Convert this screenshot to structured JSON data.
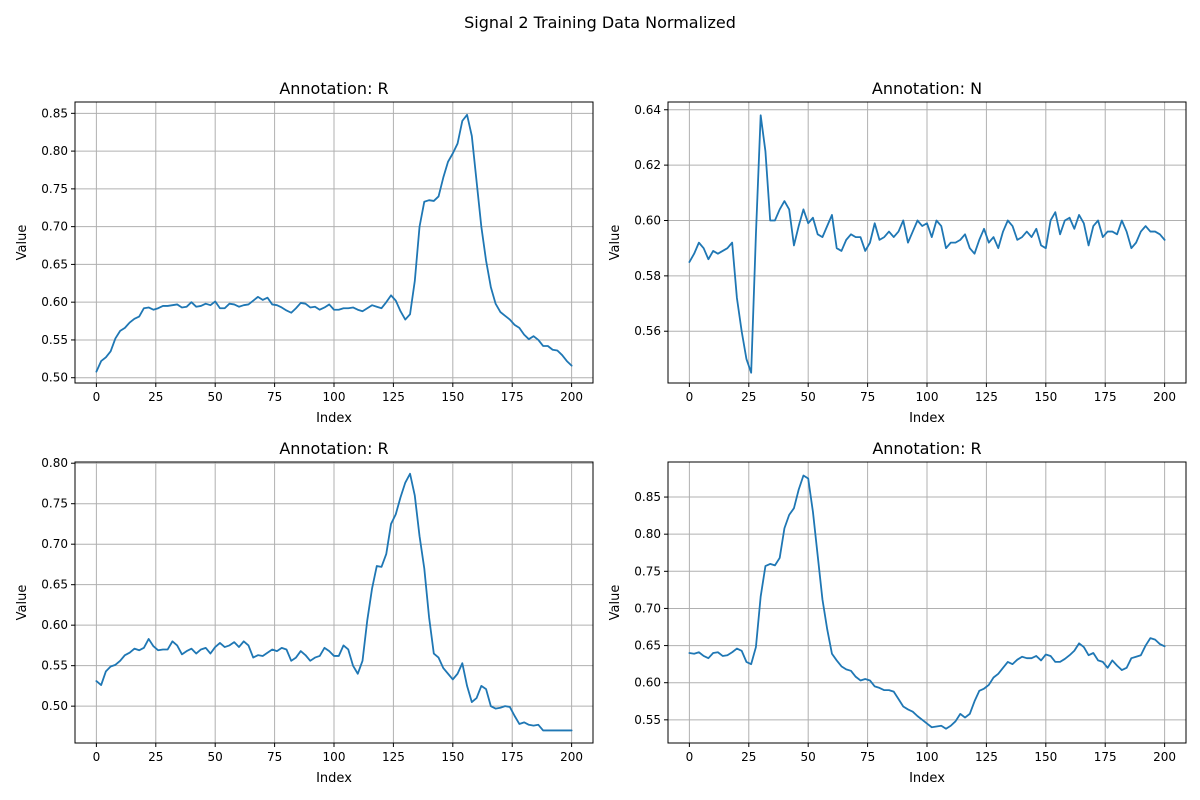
{
  "title": "Signal 2 Training Data Normalized",
  "style": {
    "line_color": "#1f77b4",
    "grid_color": "#b0b0b0"
  },
  "chart_data": [
    {
      "type": "line",
      "title": "Annotation: R",
      "xlabel": "Index",
      "ylabel": "Value",
      "xlim": [
        -9,
        209
      ],
      "ylim": [
        0.493,
        0.865
      ],
      "xticks": [
        0,
        25,
        50,
        75,
        100,
        125,
        150,
        175,
        200
      ],
      "yticks": [
        0.5,
        0.55,
        0.6,
        0.65,
        0.7,
        0.75,
        0.8,
        0.85
      ],
      "grid": true,
      "x": [
        0,
        2,
        4,
        6,
        8,
        10,
        12,
        14,
        16,
        18,
        20,
        22,
        24,
        26,
        28,
        30,
        32,
        34,
        36,
        38,
        40,
        42,
        44,
        46,
        48,
        50,
        52,
        54,
        56,
        58,
        60,
        62,
        64,
        66,
        68,
        70,
        72,
        74,
        76,
        78,
        80,
        82,
        84,
        86,
        88,
        90,
        92,
        94,
        96,
        98,
        100,
        102,
        104,
        106,
        108,
        110,
        112,
        114,
        116,
        118,
        120,
        122,
        124,
        126,
        128,
        130,
        132,
        134,
        136,
        138,
        140,
        142,
        144,
        146,
        148,
        150,
        152,
        154,
        156,
        158,
        160,
        162,
        164,
        166,
        168,
        170,
        172,
        174,
        176,
        178,
        180,
        182,
        184,
        186,
        188,
        190,
        192,
        194,
        196,
        198,
        200
      ],
      "y": [
        0.508,
        0.522,
        0.527,
        0.535,
        0.552,
        0.562,
        0.566,
        0.573,
        0.578,
        0.581,
        0.592,
        0.593,
        0.59,
        0.592,
        0.595,
        0.595,
        0.596,
        0.597,
        0.593,
        0.594,
        0.6,
        0.594,
        0.595,
        0.598,
        0.596,
        0.601,
        0.592,
        0.592,
        0.598,
        0.597,
        0.594,
        0.596,
        0.597,
        0.602,
        0.607,
        0.603,
        0.606,
        0.597,
        0.596,
        0.593,
        0.589,
        0.586,
        0.592,
        0.599,
        0.598,
        0.593,
        0.594,
        0.59,
        0.593,
        0.597,
        0.59,
        0.59,
        0.592,
        0.592,
        0.593,
        0.59,
        0.588,
        0.592,
        0.596,
        0.594,
        0.592,
        0.6,
        0.609,
        0.602,
        0.588,
        0.577,
        0.584,
        0.628,
        0.7,
        0.733,
        0.735,
        0.734,
        0.74,
        0.765,
        0.786,
        0.797,
        0.81,
        0.84,
        0.848,
        0.82,
        0.76,
        0.7,
        0.655,
        0.62,
        0.598,
        0.587,
        0.582,
        0.577,
        0.57,
        0.566,
        0.557,
        0.551,
        0.555,
        0.55,
        0.542,
        0.542,
        0.537,
        0.536,
        0.53,
        0.522,
        0.516
      ]
    },
    {
      "type": "line",
      "title": "Annotation: N",
      "xlabel": "Index",
      "ylabel": "Value",
      "xlim": [
        -9,
        209
      ],
      "ylim": [
        0.5413,
        0.6428
      ],
      "xticks": [
        0,
        25,
        50,
        75,
        100,
        125,
        150,
        175,
        200
      ],
      "yticks": [
        0.56,
        0.58,
        0.6,
        0.62,
        0.64
      ],
      "grid": true,
      "x": [
        0,
        2,
        4,
        6,
        8,
        10,
        12,
        14,
        16,
        18,
        20,
        22,
        24,
        26,
        28,
        30,
        32,
        34,
        36,
        38,
        40,
        42,
        44,
        46,
        48,
        50,
        52,
        54,
        56,
        58,
        60,
        62,
        64,
        66,
        68,
        70,
        72,
        74,
        76,
        78,
        80,
        82,
        84,
        86,
        88,
        90,
        92,
        94,
        96,
        98,
        100,
        102,
        104,
        106,
        108,
        110,
        112,
        114,
        116,
        118,
        120,
        122,
        124,
        126,
        128,
        130,
        132,
        134,
        136,
        138,
        140,
        142,
        144,
        146,
        148,
        150,
        152,
        154,
        156,
        158,
        160,
        162,
        164,
        166,
        168,
        170,
        172,
        174,
        176,
        178,
        180,
        182,
        184,
        186,
        188,
        190,
        192,
        194,
        196,
        198,
        200
      ],
      "y": [
        0.585,
        0.588,
        0.592,
        0.59,
        0.586,
        0.589,
        0.588,
        0.589,
        0.59,
        0.592,
        0.572,
        0.56,
        0.55,
        0.545,
        0.595,
        0.638,
        0.625,
        0.6,
        0.6,
        0.604,
        0.607,
        0.604,
        0.591,
        0.598,
        0.604,
        0.599,
        0.601,
        0.595,
        0.594,
        0.598,
        0.602,
        0.59,
        0.589,
        0.593,
        0.595,
        0.594,
        0.594,
        0.589,
        0.592,
        0.599,
        0.593,
        0.594,
        0.596,
        0.594,
        0.596,
        0.6,
        0.592,
        0.596,
        0.6,
        0.598,
        0.599,
        0.594,
        0.6,
        0.598,
        0.59,
        0.592,
        0.592,
        0.593,
        0.595,
        0.59,
        0.588,
        0.593,
        0.597,
        0.592,
        0.594,
        0.59,
        0.596,
        0.6,
        0.598,
        0.593,
        0.594,
        0.596,
        0.594,
        0.597,
        0.591,
        0.59,
        0.6,
        0.603,
        0.595,
        0.6,
        0.601,
        0.597,
        0.602,
        0.599,
        0.591,
        0.598,
        0.6,
        0.594,
        0.596,
        0.596,
        0.595,
        0.6,
        0.596,
        0.59,
        0.592,
        0.596,
        0.598,
        0.596,
        0.596,
        0.595,
        0.593
      ]
    },
    {
      "type": "line",
      "title": "Annotation: R",
      "xlabel": "Index",
      "ylabel": "Value",
      "xlim": [
        -9,
        209
      ],
      "ylim": [
        0.4545,
        0.8015
      ],
      "xticks": [
        0,
        25,
        50,
        75,
        100,
        125,
        150,
        175,
        200
      ],
      "yticks": [
        0.5,
        0.55,
        0.6,
        0.65,
        0.7,
        0.75,
        0.8
      ],
      "grid": true,
      "x": [
        0,
        2,
        4,
        6,
        8,
        10,
        12,
        14,
        16,
        18,
        20,
        22,
        24,
        26,
        28,
        30,
        32,
        34,
        36,
        38,
        40,
        42,
        44,
        46,
        48,
        50,
        52,
        54,
        56,
        58,
        60,
        62,
        64,
        66,
        68,
        70,
        72,
        74,
        76,
        78,
        80,
        82,
        84,
        86,
        88,
        90,
        92,
        94,
        96,
        98,
        100,
        102,
        104,
        106,
        108,
        110,
        112,
        114,
        116,
        118,
        120,
        122,
        124,
        126,
        128,
        130,
        132,
        134,
        136,
        138,
        140,
        142,
        144,
        146,
        148,
        150,
        152,
        154,
        156,
        158,
        160,
        162,
        164,
        166,
        168,
        170,
        172,
        174,
        176,
        178,
        180,
        182,
        184,
        186,
        188,
        190,
        192,
        194,
        196,
        198,
        200
      ],
      "y": [
        0.531,
        0.526,
        0.543,
        0.549,
        0.551,
        0.556,
        0.563,
        0.566,
        0.571,
        0.569,
        0.572,
        0.583,
        0.574,
        0.569,
        0.57,
        0.57,
        0.58,
        0.575,
        0.564,
        0.568,
        0.571,
        0.565,
        0.57,
        0.572,
        0.565,
        0.573,
        0.578,
        0.573,
        0.575,
        0.579,
        0.573,
        0.58,
        0.575,
        0.56,
        0.563,
        0.562,
        0.566,
        0.57,
        0.568,
        0.572,
        0.57,
        0.556,
        0.56,
        0.568,
        0.563,
        0.556,
        0.56,
        0.562,
        0.572,
        0.568,
        0.562,
        0.562,
        0.575,
        0.57,
        0.55,
        0.54,
        0.556,
        0.606,
        0.645,
        0.673,
        0.672,
        0.688,
        0.725,
        0.737,
        0.758,
        0.776,
        0.787,
        0.76,
        0.71,
        0.67,
        0.61,
        0.565,
        0.56,
        0.547,
        0.54,
        0.533,
        0.54,
        0.553,
        0.525,
        0.505,
        0.51,
        0.525,
        0.521,
        0.5,
        0.497,
        0.498,
        0.5,
        0.499,
        0.488,
        0.478,
        0.48,
        0.477,
        0.476,
        0.477,
        0.47,
        0.47,
        0.47,
        0.47,
        0.47,
        0.47,
        0.47
      ]
    },
    {
      "type": "line",
      "title": "Annotation: R",
      "xlabel": "Index",
      "ylabel": "Value",
      "xlim": [
        -9,
        209
      ],
      "ylim": [
        0.5188,
        0.8972
      ],
      "xticks": [
        0,
        25,
        50,
        75,
        100,
        125,
        150,
        175,
        200
      ],
      "yticks": [
        0.55,
        0.6,
        0.65,
        0.7,
        0.75,
        0.8,
        0.85
      ],
      "grid": true,
      "x": [
        0,
        2,
        4,
        6,
        8,
        10,
        12,
        14,
        16,
        18,
        20,
        22,
        24,
        26,
        28,
        30,
        32,
        34,
        36,
        38,
        40,
        42,
        44,
        46,
        48,
        50,
        52,
        54,
        56,
        58,
        60,
        62,
        64,
        66,
        68,
        70,
        72,
        74,
        76,
        78,
        80,
        82,
        84,
        86,
        88,
        90,
        92,
        94,
        96,
        98,
        100,
        102,
        104,
        106,
        108,
        110,
        112,
        114,
        116,
        118,
        120,
        122,
        124,
        126,
        128,
        130,
        132,
        134,
        136,
        138,
        140,
        142,
        144,
        146,
        148,
        150,
        152,
        154,
        156,
        158,
        160,
        162,
        164,
        166,
        168,
        170,
        172,
        174,
        176,
        178,
        180,
        182,
        184,
        186,
        188,
        190,
        192,
        194,
        196,
        198,
        200
      ],
      "y": [
        0.64,
        0.639,
        0.641,
        0.636,
        0.633,
        0.64,
        0.641,
        0.636,
        0.637,
        0.641,
        0.646,
        0.643,
        0.628,
        0.625,
        0.648,
        0.716,
        0.757,
        0.76,
        0.758,
        0.768,
        0.808,
        0.826,
        0.835,
        0.86,
        0.879,
        0.875,
        0.83,
        0.771,
        0.712,
        0.672,
        0.639,
        0.63,
        0.622,
        0.618,
        0.616,
        0.608,
        0.603,
        0.605,
        0.603,
        0.595,
        0.593,
        0.59,
        0.59,
        0.588,
        0.578,
        0.568,
        0.564,
        0.561,
        0.555,
        0.55,
        0.545,
        0.54,
        0.541,
        0.542,
        0.538,
        0.542,
        0.548,
        0.558,
        0.553,
        0.558,
        0.575,
        0.589,
        0.592,
        0.597,
        0.607,
        0.612,
        0.62,
        0.628,
        0.625,
        0.631,
        0.635,
        0.633,
        0.633,
        0.636,
        0.63,
        0.638,
        0.636,
        0.628,
        0.628,
        0.632,
        0.637,
        0.643,
        0.653,
        0.648,
        0.637,
        0.64,
        0.63,
        0.628,
        0.62,
        0.63,
        0.623,
        0.617,
        0.62,
        0.633,
        0.635,
        0.637,
        0.65,
        0.66,
        0.658,
        0.652,
        0.649
      ]
    }
  ]
}
